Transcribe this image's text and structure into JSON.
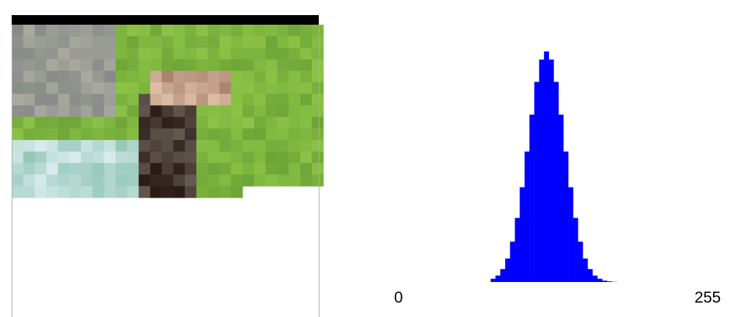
{
  "chart_data": {
    "type": "histogram",
    "bins": [
      76,
      80,
      84,
      88,
      92,
      96,
      100,
      104,
      108,
      112,
      116,
      120,
      124,
      128,
      132,
      136,
      140,
      144,
      148,
      152,
      156,
      160,
      164,
      168,
      172,
      176,
      180
    ],
    "counts": [
      1.4,
      2.8,
      5.6,
      10.2,
      17.5,
      27.8,
      41.1,
      56.6,
      72.6,
      86.8,
      96.5,
      100,
      96.5,
      86.8,
      72.6,
      56.6,
      41.1,
      27.8,
      17.5,
      10.2,
      5.6,
      2.8,
      1.4,
      0.6,
      0.3,
      0.1
    ],
    "color": "#0000ff",
    "xlim": [
      0,
      255
    ],
    "xticks": [
      0,
      255
    ],
    "ylim": [
      0,
      100
    ]
  }
}
